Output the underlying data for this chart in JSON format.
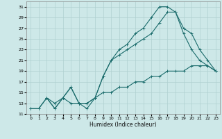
{
  "xlabel": "Humidex (Indice chaleur)",
  "bg_color": "#cde8e8",
  "grid_color": "#afd0d0",
  "line_color": "#1a6b6b",
  "xlim": [
    -0.5,
    23.5
  ],
  "ylim": [
    11,
    32
  ],
  "xticks": [
    0,
    1,
    2,
    3,
    4,
    5,
    6,
    7,
    8,
    9,
    10,
    11,
    12,
    13,
    14,
    15,
    16,
    17,
    18,
    19,
    20,
    21,
    22,
    23
  ],
  "yticks": [
    11,
    13,
    15,
    17,
    19,
    21,
    23,
    25,
    27,
    29,
    31
  ],
  "series1_x": [
    0,
    1,
    2,
    3,
    4,
    5,
    6,
    7,
    8,
    9,
    10,
    11,
    12,
    13,
    14,
    15,
    16,
    17,
    18,
    19,
    20,
    21,
    22,
    23
  ],
  "series1_y": [
    12,
    12,
    14,
    13,
    14,
    13,
    13,
    13,
    14,
    15,
    15,
    16,
    16,
    17,
    17,
    18,
    18,
    19,
    19,
    19,
    20,
    20,
    20,
    19
  ],
  "series2_x": [
    0,
    1,
    2,
    3,
    4,
    5,
    6,
    7,
    8,
    9,
    10,
    11,
    12,
    13,
    14,
    15,
    16,
    17,
    18,
    19,
    20,
    21,
    22,
    23
  ],
  "series2_y": [
    12,
    12,
    14,
    12,
    14,
    16,
    13,
    12,
    14,
    18,
    21,
    23,
    24,
    26,
    27,
    29,
    31,
    31,
    30,
    26,
    23,
    21,
    20,
    19
  ],
  "series3_x": [
    2,
    3,
    4,
    5,
    6,
    7,
    8,
    9,
    10,
    11,
    12,
    13,
    14,
    15,
    16,
    17,
    18,
    19,
    20,
    21,
    22,
    23
  ],
  "series3_y": [
    14,
    12,
    14,
    16,
    13,
    13,
    14,
    18,
    21,
    22,
    23,
    24,
    25,
    26,
    28,
    30,
    30,
    27,
    26,
    23,
    21,
    19
  ]
}
